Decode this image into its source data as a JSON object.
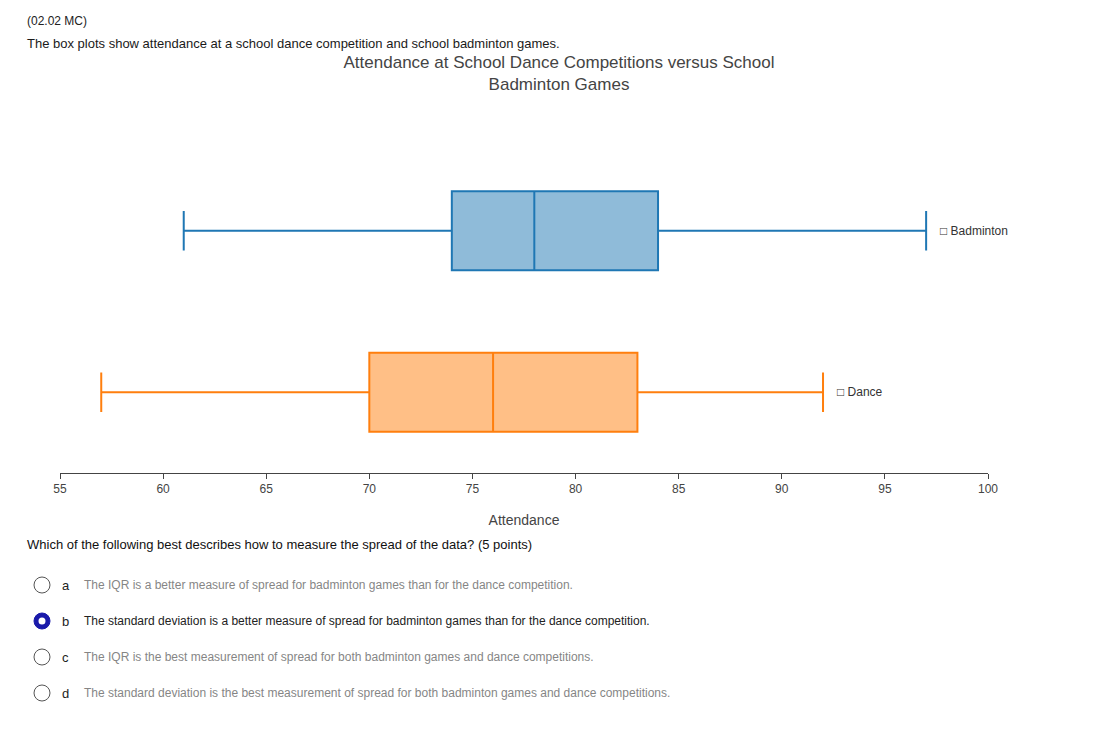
{
  "chart_data": {
    "type": "box",
    "header": "(02.02 MC)",
    "description": "The box plots show attendance at a school dance competition and school badminton games.",
    "title": "Attendance at School Dance Competitions versus School\nBadminton Games",
    "xlabel": "Attendance",
    "series": [
      {
        "name": "Badminton",
        "label": "□ Badminton",
        "min": 61,
        "q1": 74,
        "median": 78,
        "q3": 84,
        "max": 97
      },
      {
        "name": "Dance",
        "label": "□ Dance",
        "min": 57,
        "q1": 70,
        "median": 76,
        "q3": 83,
        "max": 92
      }
    ],
    "xlim": [
      55,
      100
    ],
    "xticks": [
      55,
      60,
      65,
      70,
      75,
      80,
      85,
      90,
      95,
      100
    ],
    "grid": false,
    "tick_labels": "x",
    "question": "Which of the following best describes how to measure the spread of the data? (5 points)",
    "options": [
      {
        "letter": "a",
        "text": "The IQR is a better measure of spread for badminton games than for the dance competition."
      },
      {
        "letter": "b",
        "text": "The standard deviation is a better measure of spread for badminton games than for the dance competition."
      },
      {
        "letter": "c",
        "text": "The IQR is the best measurement of spread for both badminton games and dance competitions."
      },
      {
        "letter": "d",
        "text": "The standard deviation is the best measurement of spread for both badminton games and dance competitions."
      }
    ],
    "selected": "b"
  }
}
